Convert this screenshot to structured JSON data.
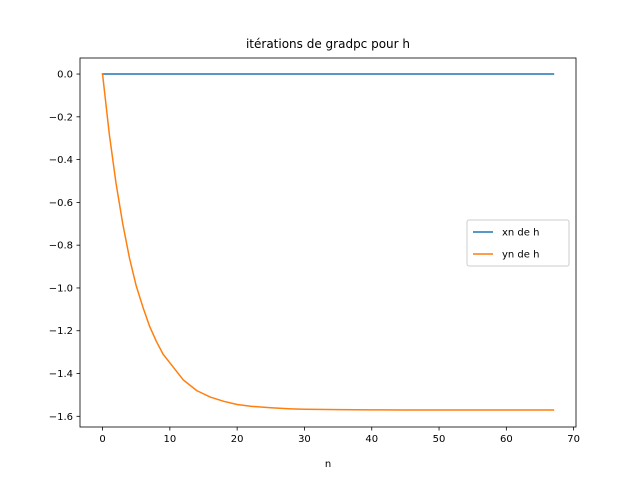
{
  "chart_data": {
    "type": "line",
    "title": "itérations de gradpc pour h",
    "xlabel": "n",
    "ylabel": "",
    "xlim": [
      -3.35,
      70.35
    ],
    "ylim": [
      -1.65,
      0.075
    ],
    "xticks": [
      0,
      10,
      20,
      30,
      40,
      50,
      60,
      70
    ],
    "yticks": [
      0.0,
      -0.2,
      -0.4,
      -0.6,
      -0.8,
      -1.0,
      -1.2,
      -1.4,
      -1.6
    ],
    "ytick_labels": [
      "0.0",
      "−0.2",
      "−0.4",
      "−0.6",
      "−0.8",
      "−1.0",
      "−1.2",
      "−1.4",
      "−1.6"
    ],
    "xtick_labels": [
      "0",
      "10",
      "20",
      "30",
      "40",
      "50",
      "60",
      "70"
    ],
    "legend_position": "center-right",
    "grid": false,
    "series": [
      {
        "name": "xn de h",
        "color": "#1f77b4",
        "x": [
          0,
          67
        ],
        "y": [
          0.0,
          0.0
        ]
      },
      {
        "name": "yn de h",
        "color": "#ff7f0e",
        "x": [
          0,
          1,
          2,
          3,
          4,
          5,
          6,
          7,
          8,
          9,
          10,
          12,
          14,
          16,
          18,
          20,
          22,
          25,
          28,
          30,
          35,
          40,
          45,
          50,
          55,
          60,
          67
        ],
        "y": [
          0.0,
          -0.28,
          -0.51,
          -0.7,
          -0.86,
          -0.99,
          -1.09,
          -1.18,
          -1.25,
          -1.31,
          -1.35,
          -1.43,
          -1.48,
          -1.51,
          -1.53,
          -1.545,
          -1.553,
          -1.56,
          -1.565,
          -1.567,
          -1.569,
          -1.57,
          -1.5705,
          -1.5708,
          -1.5708,
          -1.5708,
          -1.5708
        ]
      }
    ]
  }
}
